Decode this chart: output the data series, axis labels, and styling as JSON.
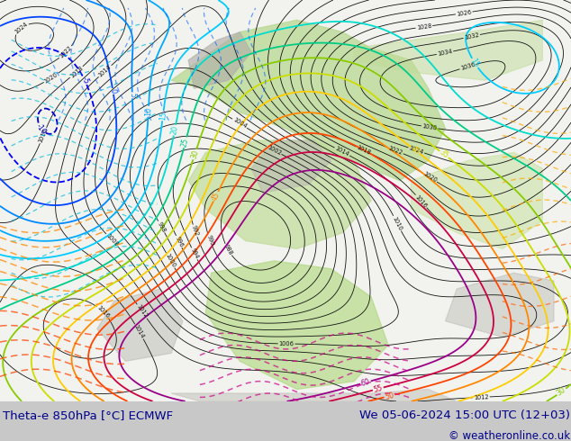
{
  "title_left": "Theta-e 850hPa [°C] ECMWF",
  "title_right": "We 05-06-2024 15:00 UTC (12+03)",
  "copyright": "© weatheronline.co.uk",
  "bg_color": "#c8c8c8",
  "map_bg": "#f5f5f0",
  "bottom_bar_color": "#c8c8c8",
  "text_color": "#00008b",
  "title_fontsize": 9.5,
  "copyright_fontsize": 8.5,
  "fig_width": 6.34,
  "fig_height": 4.9,
  "dpi": 100,
  "bottom_bar_height": 0.09
}
